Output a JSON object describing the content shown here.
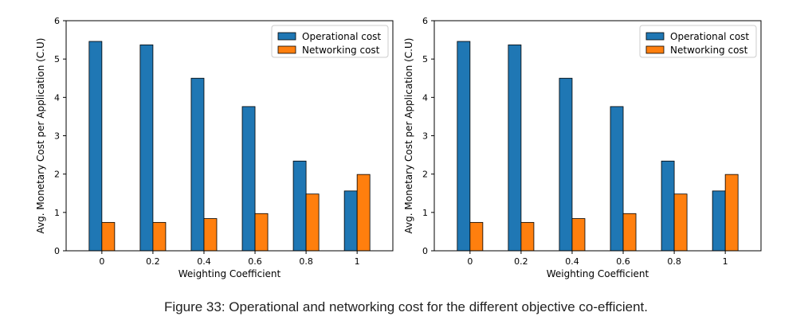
{
  "chart_data": [
    {
      "type": "bar",
      "categories": [
        "0",
        "0.2",
        "0.4",
        "0.6",
        "0.8",
        "1"
      ],
      "series": [
        {
          "name": "Operational cost",
          "color": "#1f77b4",
          "values": [
            5.46,
            5.37,
            4.5,
            3.76,
            2.34,
            1.56
          ]
        },
        {
          "name": "Networking cost",
          "color": "#ff7f0e",
          "values": [
            0.74,
            0.74,
            0.84,
            0.97,
            1.48,
            1.99
          ]
        }
      ],
      "xlabel": "Weighting Coefficient",
      "ylabel": "Avg. Monetary Cost per Application (C.U)",
      "ylim": [
        0,
        6
      ],
      "yticks": [
        "0",
        "1",
        "2",
        "3",
        "4",
        "5",
        "6"
      ],
      "grid": false,
      "legend_position": "top-right"
    },
    {
      "type": "bar",
      "categories": [
        "0",
        "0.2",
        "0.4",
        "0.6",
        "0.8",
        "1"
      ],
      "series": [
        {
          "name": "Operational cost",
          "color": "#1f77b4",
          "values": [
            5.46,
            5.37,
            4.5,
            3.76,
            2.34,
            1.56
          ]
        },
        {
          "name": "Networking cost",
          "color": "#ff7f0e",
          "values": [
            0.74,
            0.74,
            0.84,
            0.97,
            1.48,
            1.99
          ]
        }
      ],
      "xlabel": "Weighting Coefficient",
      "ylabel": "Avg. Monetary Cost per Application (C.U)",
      "ylim": [
        0,
        6
      ],
      "yticks": [
        "0",
        "1",
        "2",
        "3",
        "4",
        "5",
        "6"
      ],
      "grid": false,
      "legend_position": "top-right"
    }
  ],
  "caption": "Figure 33: Operational and networking cost for the different objective co-efficient."
}
